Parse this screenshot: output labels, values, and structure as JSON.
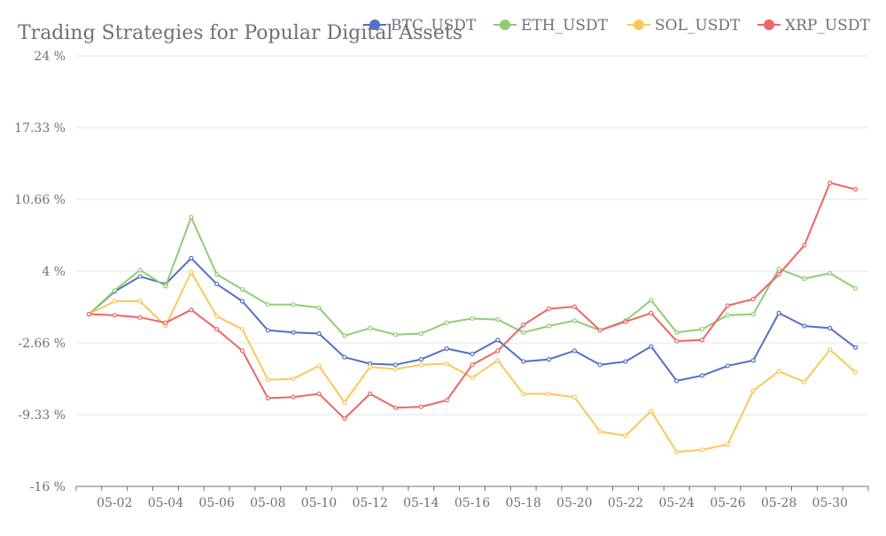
{
  "chart_data": {
    "type": "line",
    "title": "Trading Strategies for Popular Digital Assets",
    "x": [
      "05-01",
      "05-02",
      "05-03",
      "05-04",
      "05-05",
      "05-06",
      "05-07",
      "05-08",
      "05-09",
      "05-10",
      "05-11",
      "05-12",
      "05-13",
      "05-14",
      "05-15",
      "05-16",
      "05-17",
      "05-18",
      "05-19",
      "05-20",
      "05-21",
      "05-22",
      "05-23",
      "05-24",
      "05-25",
      "05-26",
      "05-27",
      "05-28",
      "05-29",
      "05-30",
      "05-31"
    ],
    "x_tick_labels": [
      "05-02",
      "05-04",
      "05-06",
      "05-08",
      "05-10",
      "05-12",
      "05-14",
      "05-16",
      "05-18",
      "05-20",
      "05-22",
      "05-24",
      "05-26",
      "05-28",
      "05-30"
    ],
    "y_tick_labels": [
      "-16 %",
      "-9.33 %",
      "-2.66 %",
      "4 %",
      "10.66 %",
      "17.33 %",
      "24 %"
    ],
    "ylim": [
      -16,
      24
    ],
    "y_unit": "%",
    "grid": true,
    "legend_position": "top-right",
    "series": [
      {
        "name": "BTC_USDT",
        "color": "#5470c6",
        "values": [
          0,
          2.1,
          3.5,
          2.8,
          5.2,
          2.8,
          1.2,
          -1.5,
          -1.7,
          -1.8,
          -4.0,
          -4.6,
          -4.7,
          -4.2,
          -3.2,
          -3.7,
          -2.4,
          -4.4,
          -4.2,
          -3.4,
          -4.7,
          -4.4,
          -3.0,
          -6.2,
          -5.7,
          -4.8,
          -4.3,
          0.1,
          -1.1,
          -1.3,
          -3.1
        ]
      },
      {
        "name": "ETH_USDT",
        "color": "#91cc75",
        "values": [
          0,
          2.2,
          4.1,
          2.6,
          9.0,
          3.7,
          2.3,
          0.9,
          0.9,
          0.6,
          -2.0,
          -1.3,
          -1.9,
          -1.8,
          -0.8,
          -0.4,
          -0.5,
          -1.7,
          -1.1,
          -0.6,
          -1.5,
          -0.6,
          1.3,
          -1.7,
          -1.4,
          -0.1,
          0.0,
          4.2,
          3.3,
          3.8,
          2.4
        ]
      },
      {
        "name": "SOL_USDT",
        "color": "#fac858",
        "values": [
          0,
          1.2,
          1.2,
          -1.1,
          3.9,
          -0.2,
          -1.4,
          -6.1,
          -6.0,
          -4.8,
          -8.2,
          -4.9,
          -5.1,
          -4.7,
          -4.6,
          -5.9,
          -4.3,
          -7.4,
          -7.4,
          -7.7,
          -10.9,
          -11.3,
          -9.0,
          -12.8,
          -12.6,
          -12.1,
          -7.1,
          -5.3,
          -6.3,
          -3.3,
          -5.4
        ]
      },
      {
        "name": "XRP_USDT",
        "color": "#ee6666",
        "values": [
          0,
          -0.1,
          -0.3,
          -0.8,
          0.4,
          -1.4,
          -3.4,
          -7.8,
          -7.7,
          -7.4,
          -9.7,
          -7.4,
          -8.7,
          -8.6,
          -8.0,
          -4.7,
          -3.4,
          -1.0,
          0.5,
          0.7,
          -1.5,
          -0.7,
          0.1,
          -2.5,
          -2.4,
          0.8,
          1.4,
          3.7,
          6.4,
          12.2,
          11.6
        ]
      }
    ]
  }
}
